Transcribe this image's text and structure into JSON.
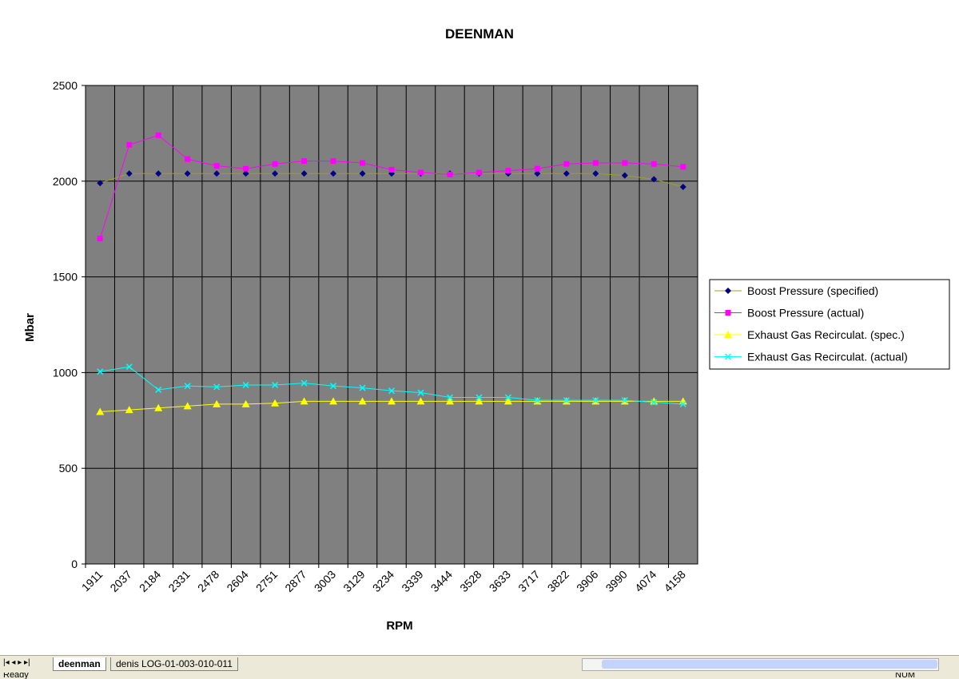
{
  "chart_data": {
    "type": "line",
    "title": "DEENMAN",
    "x_label": "RPM",
    "y_label": "Mbar",
    "categories": [
      "1911",
      "2037",
      "2184",
      "2331",
      "2478",
      "2604",
      "2751",
      "2877",
      "3003",
      "3129",
      "3234",
      "3339",
      "3444",
      "3528",
      "3633",
      "3717",
      "3822",
      "3906",
      "3990",
      "4074",
      "4158"
    ],
    "ylim": [
      0,
      2500
    ],
    "yticks": [
      0,
      500,
      1000,
      1500,
      2000,
      2500
    ],
    "grid": true,
    "legend": "right",
    "series": [
      {
        "name": "Boost Pressure (specified)",
        "color": "#000080",
        "line_color": "#a0a020",
        "marker": "diamond",
        "values": [
          1990,
          2040,
          2040,
          2040,
          2040,
          2040,
          2040,
          2040,
          2040,
          2040,
          2040,
          2040,
          2040,
          2040,
          2040,
          2040,
          2040,
          2040,
          2030,
          2010,
          1970
        ]
      },
      {
        "name": "Boost Pressure (actual)",
        "color": "#ff00ff",
        "marker": "square",
        "values": [
          1700,
          2190,
          2240,
          2115,
          2080,
          2065,
          2090,
          2105,
          2105,
          2095,
          2060,
          2045,
          2035,
          2045,
          2055,
          2065,
          2090,
          2095,
          2095,
          2090,
          2075
        ]
      },
      {
        "name": "Exhaust Gas Recirculat. (spec.)",
        "color": "#ffff00",
        "marker": "triangle",
        "values": [
          795,
          805,
          815,
          825,
          835,
          835,
          840,
          850,
          850,
          850,
          850,
          850,
          850,
          850,
          850,
          850,
          850,
          850,
          850,
          850,
          850
        ]
      },
      {
        "name": "Exhaust Gas Recirculat. (actual)",
        "color": "#00ffff",
        "marker": "x",
        "values": [
          1005,
          1030,
          910,
          930,
          925,
          935,
          935,
          945,
          930,
          920,
          905,
          895,
          870,
          870,
          870,
          855,
          855,
          855,
          855,
          845,
          835
        ]
      }
    ]
  },
  "sheet_tabs": [
    "deenman",
    "denis LOG-01-003-010-011"
  ],
  "status": [
    "Ready",
    "NUM"
  ]
}
